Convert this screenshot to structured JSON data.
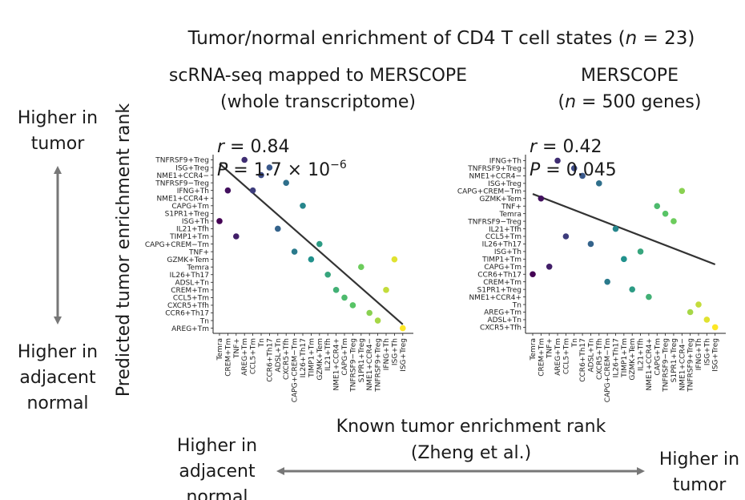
{
  "figure": {
    "title": "Tumor/normal enrichment of CD4 T cell states (n = 23)",
    "title_pre": "Tumor/normal enrichment of CD4 T cell states (",
    "title_n": "n",
    "title_post": " = 23)",
    "left_label_top": [
      "Higher in",
      "tumor"
    ],
    "left_label_bottom": [
      "Higher in",
      "adjacent",
      "normal"
    ],
    "y_axis_label": "Predicted tumor enrichment rank",
    "x_axis_label": [
      "Known tumor enrichment rank",
      "(Zheng et al.)"
    ],
    "bottom_left_label": [
      "Higher in",
      "adjacent",
      "normal"
    ],
    "bottom_right_label": [
      "Higher in",
      "tumor"
    ]
  },
  "colors": {
    "fit_line": "#333333",
    "arrow": "#777777",
    "palette": [
      "#440154",
      "#3b528b",
      "#21918c",
      "#5ec962",
      "#fde725"
    ]
  },
  "chart_data": [
    {
      "type": "scatter",
      "title": [
        "scRNA-seq mapped to MERSCOPE",
        "(whole transcriptome)"
      ],
      "stat_r_label": "r",
      "stat_r_value": " = 0.84",
      "stat_p_label": "P",
      "stat_p_value": " = 1.7 × 10",
      "stat_p_exp": "−6",
      "x_categories": [
        "Temra",
        "CREM+Tm",
        "TNF+",
        "AREG+Tm",
        "CCL5+Tm",
        "Tn",
        "CCR6+Th17",
        "ADSL+Tn",
        "CXCR5+Tfh",
        "CAPG+CREM−Tm",
        "IL26+Th17",
        "TIMP1+Tm",
        "GZMK+Tem",
        "IL21+Tfh",
        "NME1+CCR4+",
        "CAPG+Tm",
        "TNFRSF9−Treg",
        "S1PR1+Treg",
        "NME1+CCR4−",
        "TNFRSF9+Treg",
        "IFNG+Th",
        "ISG+Th",
        "ISG+Treg"
      ],
      "y_categories": [
        "TNFRSF9+Treg",
        "ISG+Treg",
        "NME1+CCR4−",
        "TNFRSF9−Treg",
        "IFNG+Th",
        "NME1+CCR4+",
        "CAPG+Tm",
        "S1PR1+Treg",
        "ISG+Th",
        "IL21+Tfh",
        "TIMP1+Tm",
        "CAPG+CREM−Tm",
        "TNF+",
        "GZMK+Tem",
        "Temra",
        "IL26+Th17",
        "ADSL+Tn",
        "CREM+Tm",
        "CCL5+Tm",
        "CXCR5+Tfh",
        "CCR6+Th17",
        "Tn",
        "AREG+Tm"
      ],
      "points_y_rank": [
        9,
        5,
        11,
        1,
        5,
        3,
        2,
        10,
        4,
        13,
        7,
        14,
        12,
        16,
        18,
        19,
        20,
        15,
        21,
        22,
        18,
        14,
        23
      ],
      "fit_line": {
        "x_start": 1,
        "y_start": 1.5,
        "x_end": 23,
        "y_end": 22.5
      }
    },
    {
      "type": "scatter",
      "title": [
        "MERSCOPE",
        "(n = 500 genes)"
      ],
      "title2_pre": "(",
      "title2_n": "n",
      "title2_post": " = 500 genes)",
      "stat_r_label": "r",
      "stat_r_value": " = 0.42",
      "stat_p_label": "P",
      "stat_p_value": " = 0.045",
      "x_categories": [
        "Temra",
        "CREM+Tm",
        "TNF+",
        "AREG+Tm",
        "CCL5+Tm",
        "Tn",
        "CCR6+Th17",
        "ADSL+Tn",
        "CXCR5+Tfh",
        "CAPG+CREM−Tm",
        "IL26+Th17",
        "TIMP1+Tm",
        "GZMK+Tem",
        "IL21+Tfh",
        "NME1+CCR4+",
        "CAPG+Tm",
        "TNFRSF9−Treg",
        "S1PR1+Treg",
        "NME1+CCR4−",
        "TNFRSF9+Treg",
        "IFNG+Th",
        "ISG+Th",
        "ISG+Treg"
      ],
      "y_categories": [
        "IFNG+Th",
        "TNFRSF9+Treg",
        "NME1+CCR4−",
        "ISG+Treg",
        "CAPG+CREM−Tm",
        "GZMK+Tem",
        "TNF+",
        "Temra",
        "TNFRSF9−Treg",
        "IL21+Tfh",
        "CCL5+Tm",
        "IL26+Th17",
        "ISG+Th",
        "TIMP1+Tm",
        "CAPG+Tm",
        "CCR6+Th17",
        "CREM+Tm",
        "S1PR1+Treg",
        "NME1+CCR4+",
        "Tn",
        "AREG+Tm",
        "ADSL+Tn",
        "CXCR5+Tfh"
      ],
      "points_y_rank": [
        16,
        6,
        15,
        1,
        11,
        2,
        3,
        12,
        4,
        17,
        10,
        14,
        18,
        13,
        19,
        7,
        8,
        9,
        5,
        21,
        20,
        22,
        23
      ],
      "fit_line": {
        "x_start": 1,
        "y_start": 5.4,
        "x_end": 23,
        "y_end": 14.7
      }
    }
  ]
}
